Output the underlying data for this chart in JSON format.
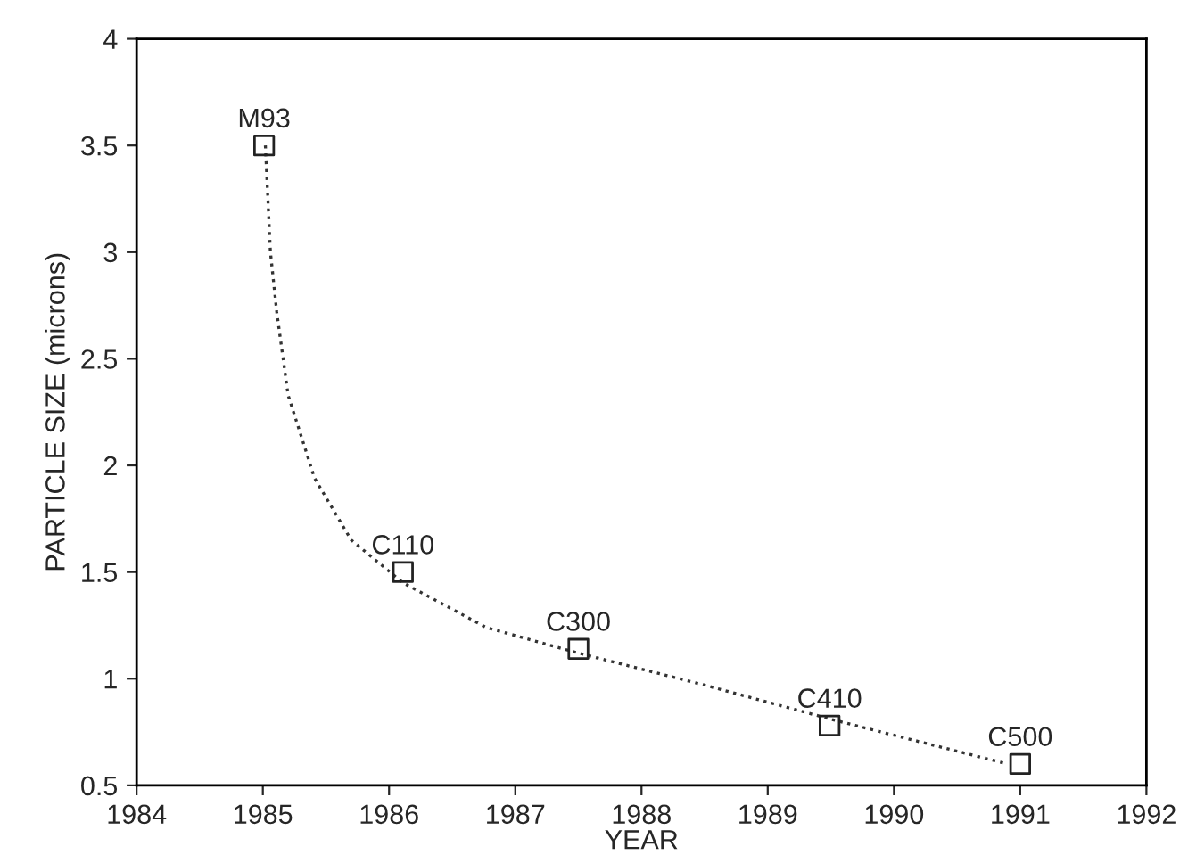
{
  "chart_data": {
    "type": "scatter",
    "xlabel": "YEAR",
    "ylabel": "PARTICLE SIZE (microns)",
    "xlim": [
      1984,
      1992
    ],
    "ylim": [
      0.5,
      4
    ],
    "xticks": [
      1984,
      1985,
      1986,
      1987,
      1988,
      1989,
      1990,
      1991,
      1992
    ],
    "yticks": [
      0.5,
      1,
      1.5,
      2,
      2.5,
      3,
      3.5,
      4
    ],
    "grid": false,
    "legend": false,
    "series": [
      {
        "type": "line",
        "color": "#333333",
        "line_style": "dotted",
        "marker": "none",
        "x": [
          1985.02,
          1985.06,
          1985.11,
          1985.2,
          1985.41,
          1985.7,
          1986.11,
          1986.77,
          1987.5,
          1988.5,
          1989.5,
          1990.9
        ],
        "values": [
          3.5,
          3.0,
          2.72,
          2.33,
          1.94,
          1.65,
          1.45,
          1.24,
          1.12,
          0.97,
          0.81,
          0.6
        ]
      },
      {
        "color": "#222222",
        "marker": "square",
        "x": [
          1985.01,
          1986.11,
          1987.5,
          1989.49,
          1991.0
        ],
        "values": [
          3.5,
          1.5,
          1.14,
          0.78,
          0.6
        ]
      }
    ],
    "annotations": [
      {
        "text": "M93",
        "x": 1985.01,
        "y": 3.5
      },
      {
        "text": "C110",
        "x": 1986.11,
        "y": 1.5
      },
      {
        "text": "C300",
        "x": 1987.5,
        "y": 1.14
      },
      {
        "text": "C410",
        "x": 1989.49,
        "y": 0.78
      },
      {
        "text": "C500",
        "x": 1991.0,
        "y": 0.6
      }
    ]
  }
}
